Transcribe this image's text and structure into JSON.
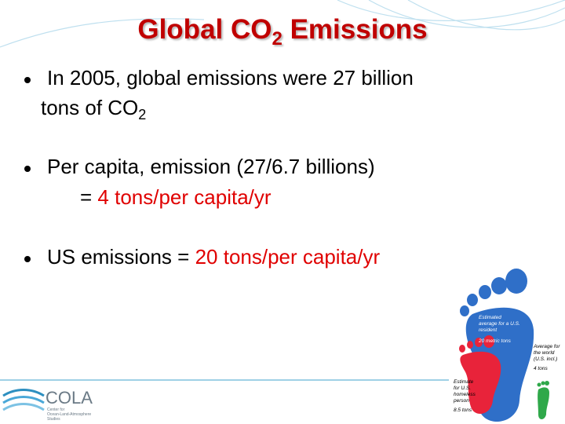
{
  "title": {
    "main": "Global CO",
    "sub": "2",
    "rest": " Emissions"
  },
  "bullets": [
    {
      "line1": "In 2005, global emissions were 27 billion",
      "line2": "tons of CO",
      "line2_sub": "2"
    },
    {
      "line1": "Per capita, emission (27/6.7 billions)",
      "line2": "= ",
      "line2_red": "4 tons/per capita/yr"
    },
    {
      "line1": "US emissions = ",
      "line1_red": "20 tons/per capita/yr"
    }
  ],
  "footprint": {
    "us_label": [
      "Estimated",
      "average for a U.S.",
      "resident"
    ],
    "us_value": "20 metric tons",
    "world_label": [
      "Average for",
      "the world",
      "(U.S. incl.)"
    ],
    "world_value": "4 tons",
    "homeless_label": [
      "Estimate",
      "for U.S.",
      "homeless",
      "person"
    ],
    "homeless_value": "8.5 tons"
  },
  "logo": {
    "name": "COLA",
    "subtitle": [
      "Center for",
      "Ocean-Land-Atmosphere",
      "Studies"
    ]
  }
}
